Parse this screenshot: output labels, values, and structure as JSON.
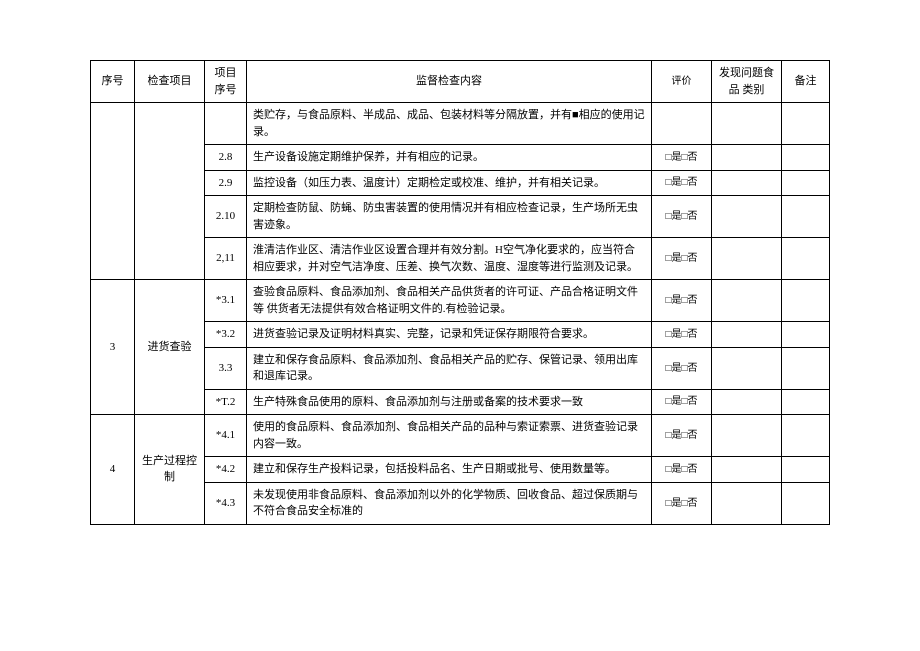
{
  "colors": {
    "border": "#000000",
    "bg": "#ffffff",
    "text": "#000000"
  },
  "fontsize_pt": 11,
  "table": {
    "type": "table",
    "columns": [
      "序号",
      "检查项目",
      "项目\n序号",
      "监督检查内容",
      "评价",
      "发现问题食品\n类别",
      "备注"
    ],
    "sections": [
      {
        "seq": "",
        "item": "",
        "rows": [
          {
            "sub": "",
            "content": "类贮存，与食品原料、半成品、成品、包装材料等分隔放置，并有■相应的使用记录。",
            "eval": ""
          },
          {
            "sub": "2.8",
            "content": "生产设备设施定期维护保养，并有相应的记录。",
            "eval": "□是□否"
          },
          {
            "sub": "2.9",
            "content": "监控设备（如压力表、温度计）定期检定或校准、维护，并有相关记录。",
            "eval": "□是□否"
          },
          {
            "sub": "2.10",
            "content": "定期检查防鼠、防蝇、防虫害装置的使用情况并有相应检查记录，生产场所无虫害迹象。",
            "eval": "□是□否"
          },
          {
            "sub": "2,11",
            "content": "淮清洁作业区、清洁作业区设置合理并有效分割。H空气净化要求的，应当符合相应要求，并对空气洁净度、压差、换气次数、温度、湿度等进行监测及记录。",
            "eval": "□是□否"
          }
        ]
      },
      {
        "seq": "3",
        "item": "进货查验",
        "rows": [
          {
            "sub": "*3.1",
            "content": "查验食品原料、食品添加剂、食品相关产品供货者的许可证、产品合格证明文件等 供货者无法提供有效合格证明文件的.有检验记录。",
            "eval": "□是□否"
          },
          {
            "sub": "*3.2",
            "content": "进货查验记录及证明材料真实、完整，记录和凭证保存期限符合要求。",
            "eval": "□是□否"
          },
          {
            "sub": "3.3",
            "content": "建立和保存食品原料、食品添加剂、食品相关产品的贮存、保管记录、领用出库和退库记录。",
            "eval": "□是□否"
          },
          {
            "sub": "*T.2",
            "content": "生产特殊食品使用的原料、食品添加剂与注册或备案的技术要求一致",
            "eval": "□是□否"
          }
        ]
      },
      {
        "seq": "4",
        "item": "生产过程控制",
        "rows": [
          {
            "sub": "*4.1",
            "content": "使用的食品原料、食品添加剂、食品相关产品的品种与索证索票、进货查验记录内容一致。",
            "eval": "□是□否"
          },
          {
            "sub": "*4.2",
            "content": "建立和保存生产投料记录，包括投料品名、生产日期或批号、使用数量等。",
            "eval": "□是□否"
          },
          {
            "sub": "*4.3",
            "content": "未发现使用非食品原料、食品添加剂以外的化学物质、回收食品、超过保质期与不符合食品安全标准的",
            "eval": "□是□否"
          }
        ]
      }
    ]
  }
}
